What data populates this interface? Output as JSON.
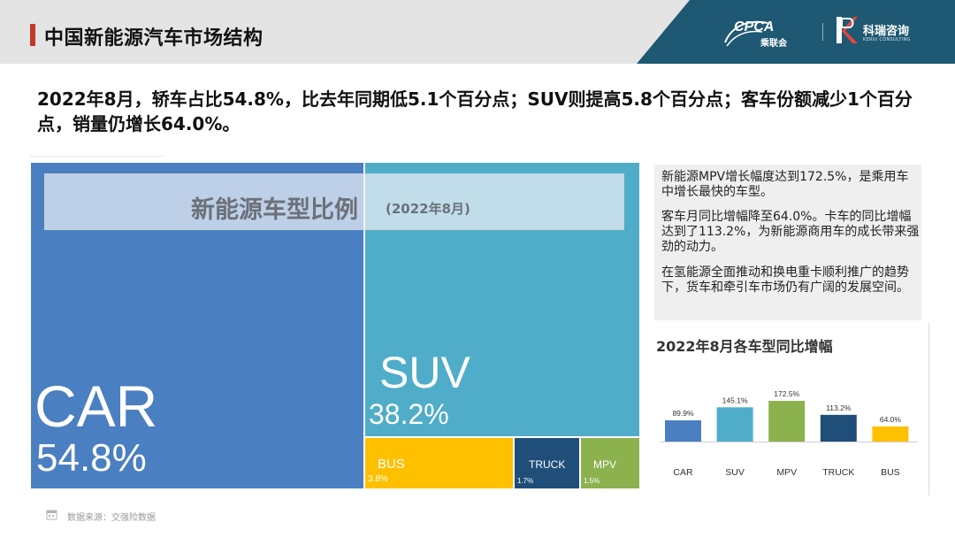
{
  "header": {
    "title": "中国新能源汽车市场结构",
    "logo_left_text": "CPCA",
    "logo_left_sub": "乘联会",
    "logo_right_text": "科瑞咨询",
    "logo_right_sub": "KERUI CONSULTING"
  },
  "headline": "2022年8月，轿车占比54.8%，比去年同期低5.1个百分点；SUV则提高5.8个百分点；客车份额减少1个百分点，销量仍增长64.0%。",
  "treemap": {
    "title": "新能源车型比例",
    "subtitle": "(2022年8月)",
    "tiles": [
      {
        "label": "CAR",
        "value": "54.8%"
      },
      {
        "label": "SUV",
        "value": "38.2%"
      },
      {
        "label": "BUS",
        "value": "3.8%"
      },
      {
        "label": "TRUCK",
        "value": "1.7%"
      },
      {
        "label": "MPV",
        "value": "1.5%"
      }
    ]
  },
  "side": {
    "paragraphs": [
      "新能源MPV增长幅度达到172.5%，是乘用车中增长最快的车型。",
      "客车月同比增幅降至64.0%。卡车的同比增幅达到了113.2%，为新能源商用车的成长带来强劲的动力。",
      "在氢能源全面推动和换电重卡顺利推广的趋势下，货车和牵引车市场仍有广阔的发展空间。"
    ]
  },
  "chart_data": [
    {
      "type": "treemap",
      "title": "新能源车型比例",
      "subtitle": "(2022年8月)",
      "categories": [
        "CAR",
        "SUV",
        "BUS",
        "TRUCK",
        "MPV"
      ],
      "values": [
        54.8,
        38.2,
        3.8,
        1.7,
        1.5
      ],
      "colors": [
        "#4a7fc1",
        "#4fadc9",
        "#ffc000",
        "#1f4e79",
        "#8cb24e"
      ]
    },
    {
      "type": "bar",
      "title": "2022年8月各车型同比增幅",
      "categories": [
        "CAR",
        "SUV",
        "MPV",
        "TRUCK",
        "BUS"
      ],
      "values": [
        89.9,
        145.1,
        172.5,
        113.2,
        64.0
      ],
      "value_labels": [
        "89.9%",
        "145.1%",
        "172.5%",
        "113.2%",
        "64.0%"
      ],
      "colors": [
        "#4a7fc1",
        "#4fadc9",
        "#8cb24e",
        "#1f4e79",
        "#ffc000"
      ],
      "ylim": [
        0,
        180
      ],
      "grid": false,
      "legend": "none"
    }
  ],
  "footer": {
    "source": "数据来源：交强险数据"
  }
}
